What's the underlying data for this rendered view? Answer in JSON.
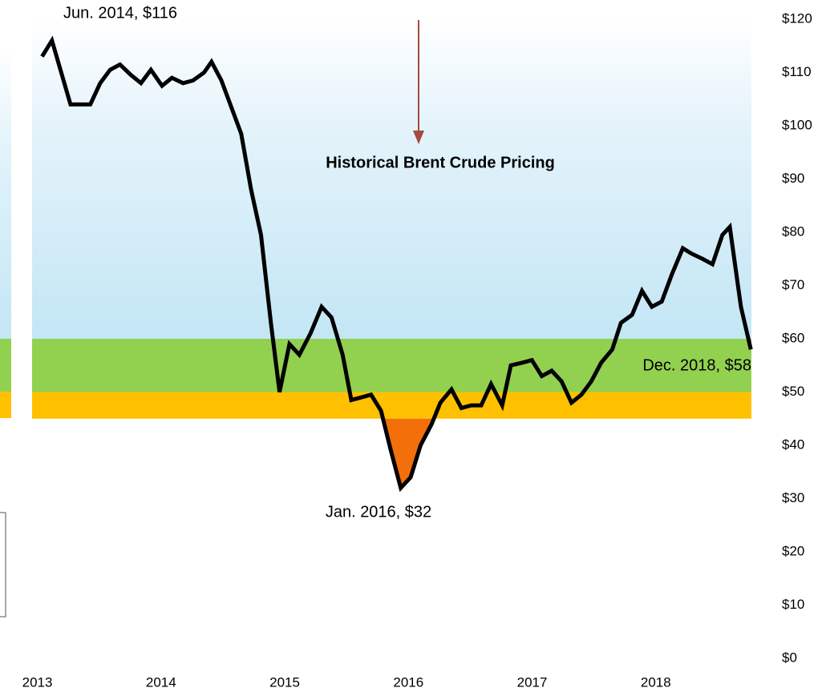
{
  "chart_data": {
    "type": "line",
    "annotation": "Historical Brent Crude Pricing",
    "point_labels": [
      "Jun. 2014, $116",
      "Jan. 2016, $32",
      "Dec. 2018, $58"
    ],
    "x": [
      2013.09,
      2013.17,
      2013.32,
      2013.48,
      2013.56,
      2013.64,
      2013.72,
      2013.81,
      2013.89,
      2013.97,
      2014.06,
      2014.14,
      2014.23,
      2014.31,
      2014.4,
      2014.46,
      2014.54,
      2014.62,
      2014.7,
      2014.78,
      2014.86,
      2014.94,
      2015.01,
      2015.09,
      2015.17,
      2015.26,
      2015.35,
      2015.43,
      2015.52,
      2015.59,
      2015.67,
      2015.75,
      2015.83,
      2015.91,
      2015.99,
      2016.07,
      2016.15,
      2016.24,
      2016.31,
      2016.4,
      2016.48,
      2016.56,
      2016.64,
      2016.72,
      2016.81,
      2016.88,
      2016.97,
      2017.05,
      2017.13,
      2017.21,
      2017.29,
      2017.37,
      2017.45,
      2017.53,
      2017.61,
      2017.7,
      2017.77,
      2017.86,
      2017.94,
      2018.02,
      2018.1,
      2018.18,
      2018.27,
      2018.34,
      2018.43,
      2018.51,
      2018.59,
      2018.65,
      2018.74,
      2018.82
    ],
    "series": [
      {
        "color": "#000000",
        "values": [
          113,
          116,
          104,
          104,
          108,
          110.5,
          111.5,
          109.5,
          108,
          110.5,
          107.5,
          109,
          108,
          108.5,
          110,
          112,
          108.5,
          103.5,
          98.5,
          88,
          79.5,
          63,
          50,
          59,
          57,
          61,
          66,
          64,
          57,
          48.5,
          49,
          49.5,
          46.5,
          39,
          32,
          34,
          40,
          44,
          48,
          50.5,
          47,
          47.5,
          47.5,
          51.5,
          47.5,
          55,
          55.5,
          56,
          53,
          54,
          52,
          48,
          49.5,
          52,
          55.5,
          58,
          63,
          64.5,
          69,
          66,
          67,
          72,
          77,
          76,
          75,
          74,
          79.5,
          81,
          66,
          58
        ]
      }
    ],
    "bands": [
      {
        "lower": 60,
        "upper": 120,
        "color": "#c3e6f5"
      },
      {
        "lower": 50,
        "upper": 60,
        "color": "#92d050"
      },
      {
        "lower": 45,
        "upper": 50,
        "color": "#ffc000"
      }
    ],
    "below_fill": {
      "level": 45,
      "color": "#f36f0a"
    },
    "xlim": [
      2012.75,
      2019.46
    ],
    "xticks": [
      2013,
      2014,
      2015,
      2016,
      2017,
      2018
    ],
    "ylim": [
      0,
      120
    ],
    "yticks": [
      {
        "value": 0,
        "label": "$0"
      },
      {
        "value": 10,
        "label": "$10"
      },
      {
        "value": 20,
        "label": "$20"
      },
      {
        "value": 30,
        "label": "$30"
      },
      {
        "value": 40,
        "label": "$40"
      },
      {
        "value": 50,
        "label": "$50"
      },
      {
        "value": 60,
        "label": "$60"
      },
      {
        "value": 70,
        "label": "$70"
      },
      {
        "value": 80,
        "label": "$80"
      },
      {
        "value": 90,
        "label": "$90"
      },
      {
        "value": 100,
        "label": "$100"
      },
      {
        "value": 110,
        "label": "$110"
      },
      {
        "value": 120,
        "label": "$120"
      }
    ]
  }
}
